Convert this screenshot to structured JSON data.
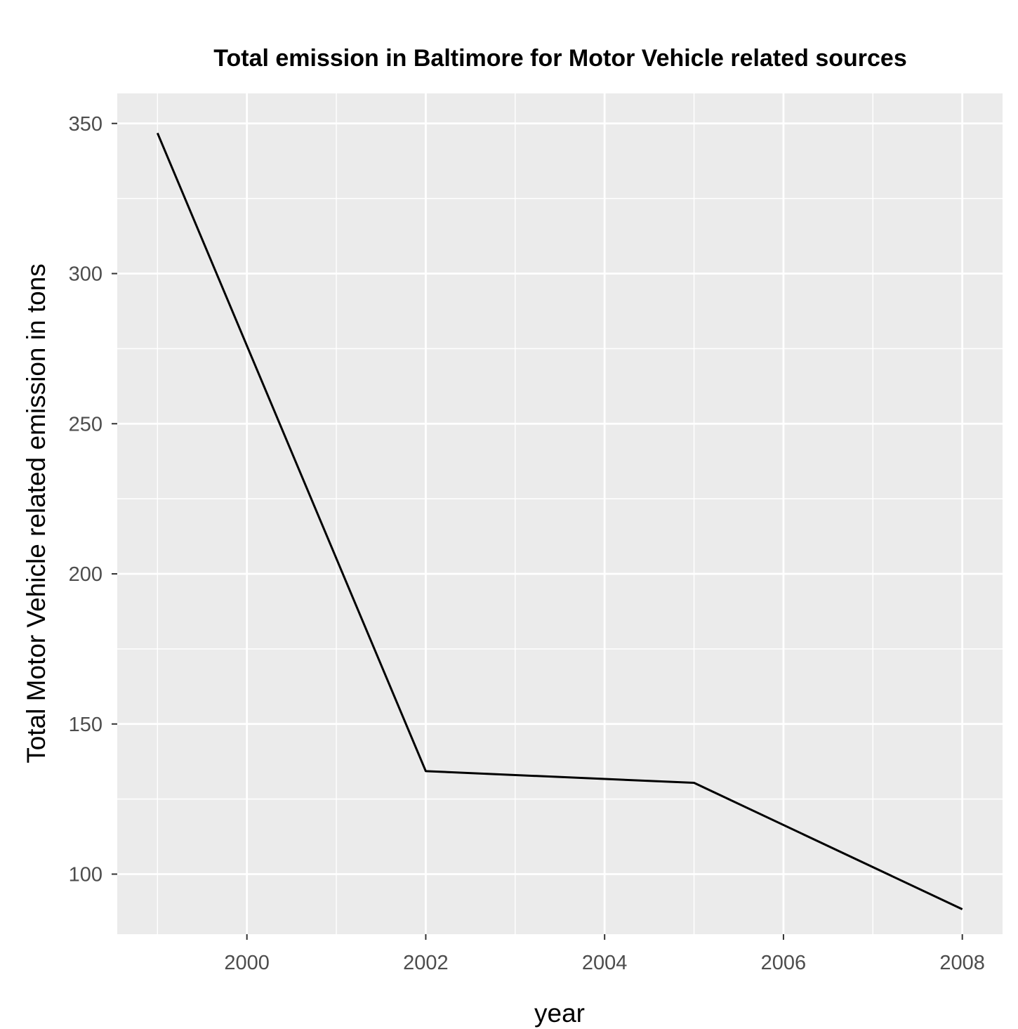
{
  "chart_data": {
    "type": "line",
    "title": "Total emission in Baltimore for Motor Vehicle related sources",
    "xlabel": "year",
    "ylabel": "Total Motor Vehicle related emission in tons",
    "x_ticks": [
      "2000",
      "2002",
      "2004",
      "2006",
      "2008"
    ],
    "y_ticks": [
      "100",
      "150",
      "200",
      "250",
      "300",
      "350"
    ],
    "xlim": [
      1998.55,
      2008.45
    ],
    "ylim": [
      80,
      360
    ],
    "grid": true,
    "series": [
      {
        "x": [
          1999,
          2002,
          2005,
          2008
        ],
        "y": [
          346.8,
          134.3,
          130.4,
          88.3
        ]
      }
    ],
    "colors": {
      "panel": "#ebebeb",
      "grid": "#ffffff",
      "line": "#000000",
      "tick_text": "#4d4d4d"
    }
  }
}
